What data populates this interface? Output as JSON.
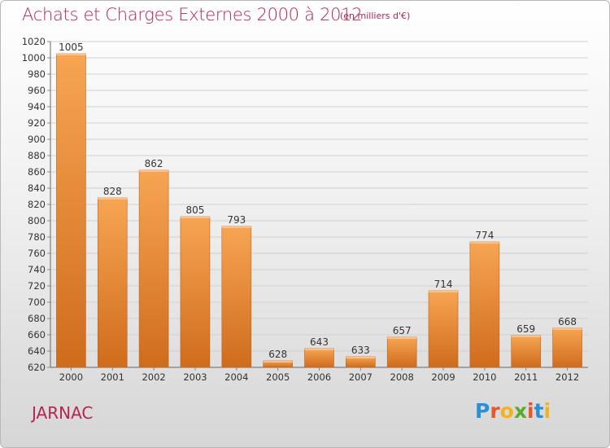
{
  "chart_data": {
    "type": "bar",
    "title": "Achats et Charges Externes 2000 à 2012",
    "subtitle": "(en milliers d'€)",
    "categories": [
      "2000",
      "2001",
      "2002",
      "2003",
      "2004",
      "2005",
      "2006",
      "2007",
      "2008",
      "2009",
      "2010",
      "2011",
      "2012"
    ],
    "values": [
      1005,
      828,
      862,
      805,
      793,
      628,
      643,
      633,
      657,
      714,
      774,
      659,
      668
    ],
    "ylim": [
      620,
      1020
    ],
    "yticks": [
      620,
      640,
      660,
      680,
      700,
      720,
      740,
      760,
      780,
      800,
      820,
      840,
      860,
      880,
      900,
      920,
      940,
      960,
      980,
      1000,
      1020
    ],
    "grid": true,
    "legend": "none",
    "bar_color": "#f0993e",
    "bar_color_dark": "#d06e1e"
  },
  "location": "JARNAC",
  "brand": {
    "letters": [
      "P",
      "r",
      "o",
      "x",
      "i",
      "t",
      "i"
    ],
    "colors": [
      "#2a8fd6",
      "#e8562a",
      "#f2b21c",
      "#5aaa2c",
      "#e8562a",
      "#2a8fd6",
      "#f2b21c"
    ]
  }
}
